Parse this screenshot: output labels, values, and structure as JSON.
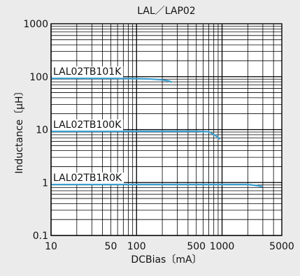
{
  "chart_data": {
    "type": "line",
    "title": "LAL／LAP02",
    "xlabel": "DCBias〔mA〕",
    "ylabel": "Inductance〔μH〕",
    "x_scale": "log",
    "y_scale": "log",
    "xlim": [
      10,
      5000
    ],
    "ylim": [
      0.1,
      1000
    ],
    "grid": true,
    "x_ticks": [
      {
        "value": 10,
        "label": "10"
      },
      {
        "value": 50,
        "label": "50"
      },
      {
        "value": 100,
        "label": "100"
      },
      {
        "value": 500,
        "label": "500"
      },
      {
        "value": 1000,
        "label": "1000"
      },
      {
        "value": 5000,
        "label": "5000"
      }
    ],
    "y_ticks": [
      {
        "value": 0.1,
        "label": "0.1"
      },
      {
        "value": 1,
        "label": "1"
      },
      {
        "value": 10,
        "label": "10"
      },
      {
        "value": 100,
        "label": "100"
      },
      {
        "value": 1000,
        "label": "1000"
      }
    ],
    "series": [
      {
        "name": "LAL02TB101K",
        "color": "#3a9fd0",
        "x": [
          10,
          50,
          100,
          150,
          200,
          240,
          260
        ],
        "y": [
          93,
          93,
          92,
          90,
          87,
          83,
          78
        ]
      },
      {
        "name": "LAL02TB100K",
        "color": "#3a9fd0",
        "x": [
          10,
          100,
          500,
          700,
          750,
          850,
          950
        ],
        "y": [
          9.3,
          9.3,
          9.3,
          9.1,
          8.6,
          7.6,
          6.6
        ]
      },
      {
        "name": "LAL02TB1R0K",
        "color": "#3a9fd0",
        "x": [
          10,
          100,
          1000,
          2000,
          2500,
          3000
        ],
        "y": [
          0.92,
          0.92,
          0.92,
          0.92,
          0.88,
          0.84
        ]
      }
    ]
  }
}
